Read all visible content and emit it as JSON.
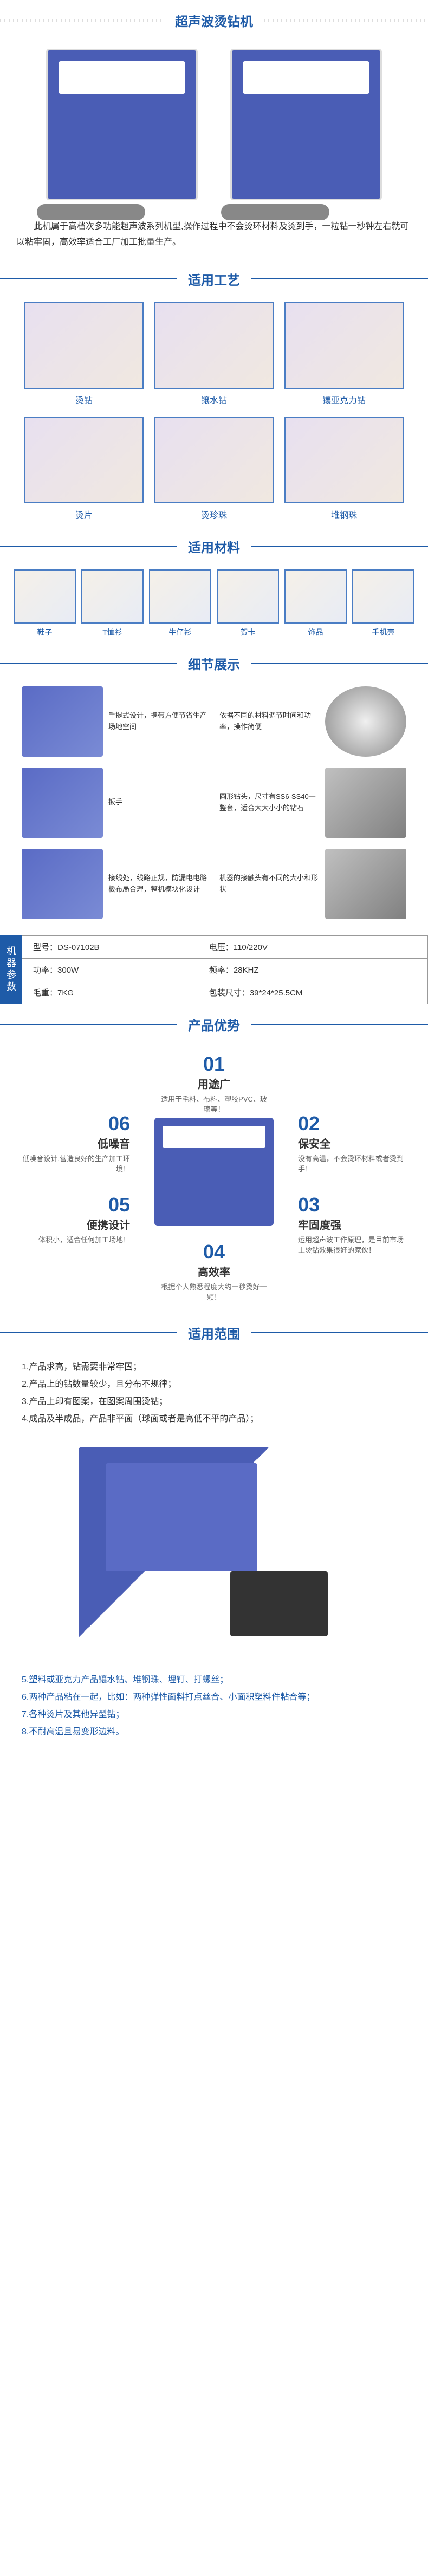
{
  "title": "超声波烫钻机",
  "intro": "此机属于高档次多功能超声波系列机型,操作过程中不会烫环材料及烫到手，一粒钻一秒钟左右就可以粘牢固，高效率适合工厂加工批量生产。",
  "sections": {
    "process": "适用工艺",
    "material": "适用材料",
    "detail": "细节展示",
    "advantage": "产品优势",
    "scope": "适用范围"
  },
  "process_items": [
    "烫钻",
    "镶水钻",
    "镶亚克力钻",
    "烫片",
    "烫珍珠",
    "堆钢珠"
  ],
  "material_items": [
    "鞋子",
    "T恤衫",
    "牛仔衫",
    "贺卡",
    "饰品",
    "手机壳"
  ],
  "details": [
    {
      "text": "手提式设计，携带方便节省生产场地空间"
    },
    {
      "text": "依据不同的材料调节时间和功率，操作简便"
    },
    {
      "text": "扳手"
    },
    {
      "text": "圆形钻头，尺寸有SS6-SS40一整套，适合大大小小的钻石"
    },
    {
      "text": "接线处，线路正规，防漏电电路板布局合理，整机模块化设计"
    },
    {
      "text": "机器的接触头有不同的大小和形状"
    }
  ],
  "specs_label": "机器参数",
  "specs": {
    "model_l": "型号：",
    "model_v": "DS-07102B",
    "volt_l": "电压：",
    "volt_v": "110/220V",
    "power_l": "功率：",
    "power_v": "300W",
    "freq_l": "频率：",
    "freq_v": "28KHZ",
    "weight_l": "毛重：",
    "weight_v": "7KG",
    "size_l": "包装尺寸：",
    "size_v": "39*24*25.5CM"
  },
  "advantages": [
    {
      "num": "01",
      "title": "用途广",
      "desc": "适用于毛料、布料、塑胶PVC、玻璃等！"
    },
    {
      "num": "02",
      "title": "保安全",
      "desc": "没有高温，不会烫环材料或者烫到手！"
    },
    {
      "num": "03",
      "title": "牢固度强",
      "desc": "运用超声波工作原理，是目前市场上烫钻效果很好的家伙！"
    },
    {
      "num": "04",
      "title": "高效率",
      "desc": "根据个人熟悉程度大约一秒烫好一颗！"
    },
    {
      "num": "05",
      "title": "便携设计",
      "desc": "体积小，适合任何加工场地！"
    },
    {
      "num": "06",
      "title": "低噪音",
      "desc": "低噪音设计,营造良好的生产加工环境！"
    }
  ],
  "scope": [
    "1.产品求高，钻需要非常牢固；",
    "2.产品上的钻数量较少，且分布不规律；",
    "3.产品上印有图案，在图案周围烫钻；",
    "4.成品及半成品，产品非平面（球面或者是高低不平的产品）；"
  ],
  "footer": [
    "5.塑料或亚克力产品镶水钻、堆钢珠、埋钉、打螺丝；",
    "6.两种产品粘在一起，比如：两种弹性面料打点丝合、小面积塑料件粘合等；",
    "7.各种烫片及其他异型钻；",
    "8.不耐高温且易变形边料。"
  ],
  "colors": {
    "primary": "#1e5ba8",
    "machine": "#4a5db5",
    "border": "#4a7dc4"
  }
}
